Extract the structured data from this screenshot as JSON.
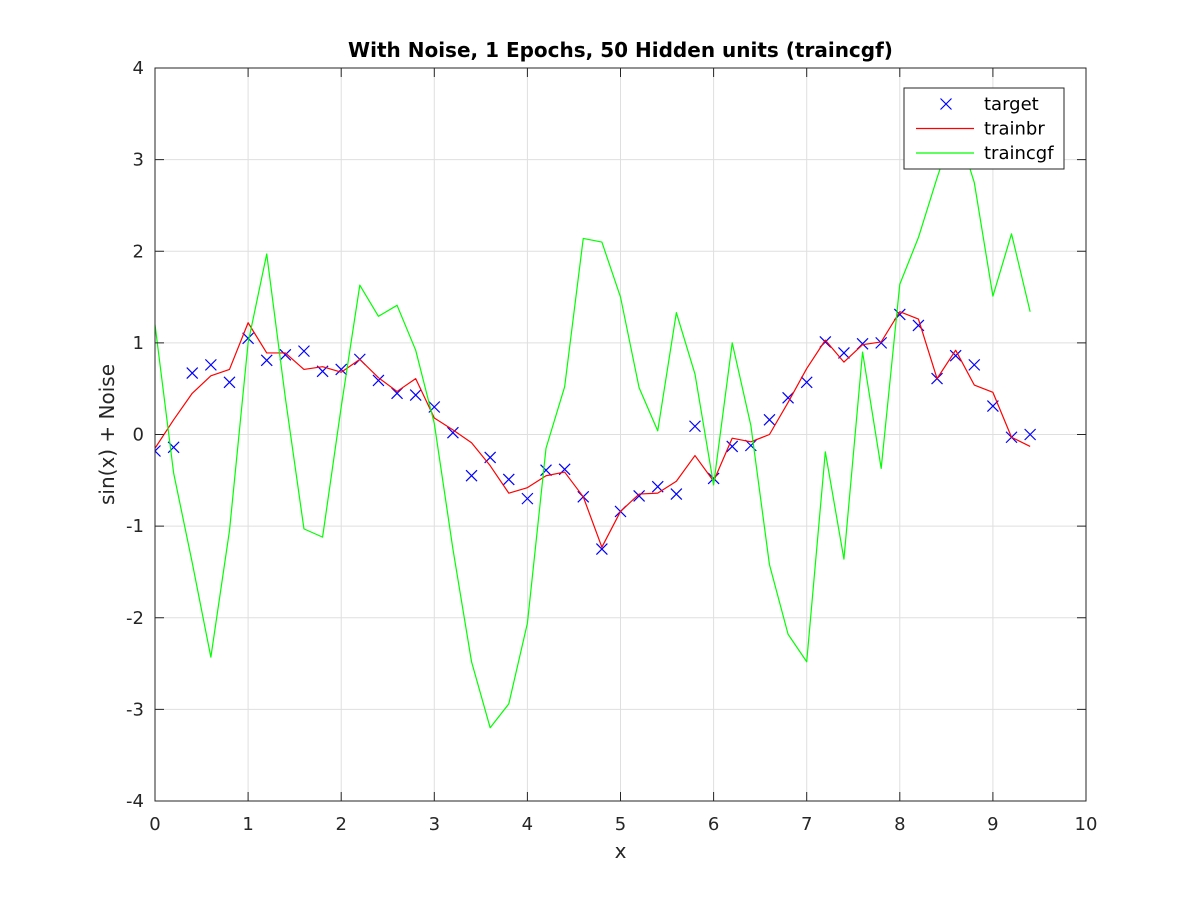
{
  "chart_data": {
    "type": "line",
    "title": "With Noise, 1 Epochs, 50 Hidden units (traincgf)",
    "xlabel": "x",
    "ylabel": "sin(x) + Noise",
    "xlim": [
      0,
      10
    ],
    "ylim": [
      -4,
      4
    ],
    "xticks": [
      0,
      1,
      2,
      3,
      4,
      5,
      6,
      7,
      8,
      9,
      10
    ],
    "yticks": [
      -4,
      -3,
      -2,
      -1,
      0,
      1,
      2,
      3,
      4
    ],
    "xtick_labels": [
      "0",
      "1",
      "2",
      "3",
      "4",
      "5",
      "6",
      "7",
      "8",
      "9",
      "10"
    ],
    "ytick_labels": [
      "-4",
      "-3",
      "-2",
      "-1",
      "0",
      "1",
      "2",
      "3",
      "4"
    ],
    "grid": true,
    "legend_position": "top-right",
    "x": [
      0,
      0.2,
      0.4,
      0.6,
      0.8,
      1.0,
      1.2,
      1.4,
      1.6,
      1.8,
      2.0,
      2.2,
      2.4,
      2.6,
      2.8,
      3.0,
      3.2,
      3.4,
      3.6,
      3.8,
      4.0,
      4.2,
      4.4,
      4.6,
      4.8,
      5.0,
      5.2,
      5.4,
      5.6,
      5.8,
      6.0,
      6.2,
      6.4,
      6.6,
      6.8,
      7.0,
      7.2,
      7.4,
      7.6,
      7.8,
      8.0,
      8.2,
      8.4,
      8.6,
      8.8,
      9.0,
      9.2,
      9.4
    ],
    "series": [
      {
        "name": "target",
        "style": "marker-x",
        "color": "#0000ff",
        "values": [
          -0.18,
          -0.14,
          0.67,
          0.76,
          0.57,
          1.05,
          0.81,
          0.87,
          0.91,
          0.69,
          0.71,
          0.82,
          0.59,
          0.45,
          0.43,
          0.3,
          0.02,
          -0.45,
          -0.25,
          -0.49,
          -0.7,
          -0.39,
          -0.38,
          -0.68,
          -1.25,
          -0.84,
          -0.67,
          -0.57,
          -0.65,
          0.09,
          -0.48,
          -0.13,
          -0.12,
          0.16,
          0.4,
          0.57,
          1.01,
          0.89,
          0.99,
          1.0,
          1.31,
          1.19,
          0.61,
          0.86,
          0.76,
          0.31,
          -0.03,
          0.0
        ]
      },
      {
        "name": "trainbr",
        "style": "line",
        "color": "#ff0000",
        "values": [
          -0.15,
          0.16,
          0.45,
          0.64,
          0.71,
          1.22,
          0.89,
          0.89,
          0.71,
          0.74,
          0.68,
          0.82,
          0.62,
          0.47,
          0.61,
          0.18,
          0.05,
          -0.09,
          -0.34,
          -0.64,
          -0.58,
          -0.45,
          -0.41,
          -0.68,
          -1.23,
          -0.84,
          -0.65,
          -0.64,
          -0.51,
          -0.23,
          -0.51,
          -0.04,
          -0.08,
          0.0,
          0.35,
          0.72,
          1.03,
          0.79,
          0.98,
          1.01,
          1.34,
          1.26,
          0.61,
          0.92,
          0.54,
          0.46,
          -0.03,
          -0.13
        ]
      },
      {
        "name": "traincgf",
        "style": "line",
        "color": "#00ff00",
        "values": [
          1.2,
          -0.42,
          -1.4,
          -2.43,
          -1.05,
          1.0,
          1.97,
          0.4,
          -1.03,
          -1.12,
          0.3,
          1.63,
          1.29,
          1.41,
          0.92,
          0.12,
          -1.25,
          -2.48,
          -3.2,
          -2.94,
          -2.06,
          -0.15,
          0.52,
          2.14,
          2.1,
          1.5,
          0.51,
          0.04,
          1.33,
          0.66,
          -0.55,
          1.0,
          0.1,
          -1.42,
          -2.18,
          -2.48,
          -0.19,
          -1.36,
          0.9,
          -0.37,
          1.64,
          2.15,
          2.8,
          3.4,
          2.75,
          1.51,
          2.19,
          1.34
        ]
      }
    ]
  }
}
